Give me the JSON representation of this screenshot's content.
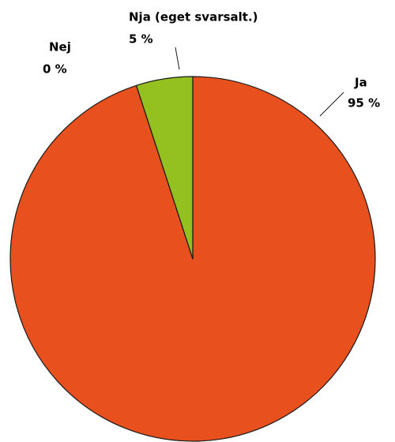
{
  "chart_data": {
    "type": "pie",
    "categories": [
      "Ja",
      "Nej",
      "Nja (eget svarsalt.)"
    ],
    "values": [
      95,
      0,
      5
    ],
    "value_labels": [
      "95 %",
      "0 %",
      "5 %"
    ],
    "colors": [
      "#e8501e",
      "#e8501e",
      "#94c11f"
    ]
  }
}
